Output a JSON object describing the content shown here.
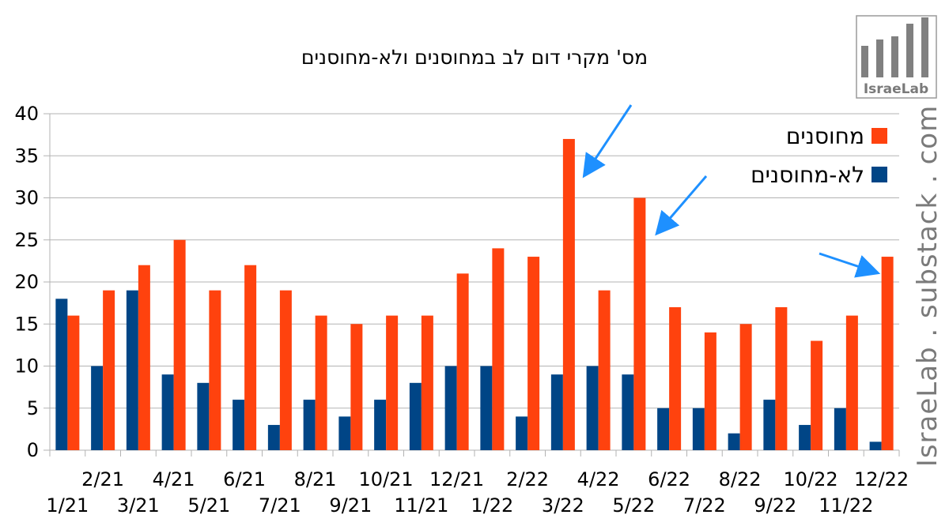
{
  "chart_data": {
    "type": "bar",
    "title": "מס' מקרי דום לב במחוסנים ולא-מחוסנים",
    "categories": [
      "1/21",
      "2/21",
      "3/21",
      "4/21",
      "5/21",
      "6/21",
      "7/21",
      "8/21",
      "9/21",
      "10/21",
      "11/21",
      "12/21",
      "1/22",
      "2/22",
      "3/22",
      "4/22",
      "5/22",
      "6/22",
      "7/22",
      "8/22",
      "9/22",
      "10/22",
      "11/22",
      "12/22"
    ],
    "series": [
      {
        "name": "לא-מחוסנים",
        "color": "#004586",
        "values": [
          18,
          10,
          19,
          9,
          8,
          6,
          3,
          6,
          4,
          6,
          8,
          10,
          10,
          4,
          9,
          10,
          9,
          5,
          5,
          2,
          6,
          3,
          5,
          1
        ]
      },
      {
        "name": "מחוסנים",
        "color": "#ff420e",
        "values": [
          16,
          19,
          22,
          25,
          19,
          22,
          19,
          16,
          15,
          16,
          16,
          21,
          24,
          23,
          37,
          19,
          30,
          17,
          14,
          15,
          17,
          13,
          16,
          23
        ]
      }
    ],
    "ylim": [
      0,
      40
    ],
    "yticks": [
      0,
      5,
      10,
      15,
      20,
      25,
      30,
      35,
      40
    ],
    "grid": true,
    "legend": "top-right",
    "annotations": [
      {
        "type": "arrow",
        "target_category": "3/22",
        "color": "#1e90ff"
      },
      {
        "type": "arrow",
        "target_category": "5/22",
        "color": "#1e90ff"
      },
      {
        "type": "arrow",
        "target_category": "12/22",
        "color": "#1e90ff"
      }
    ]
  },
  "watermark": "IsraeLab . substack . com",
  "logo_text": "IsraeLab"
}
